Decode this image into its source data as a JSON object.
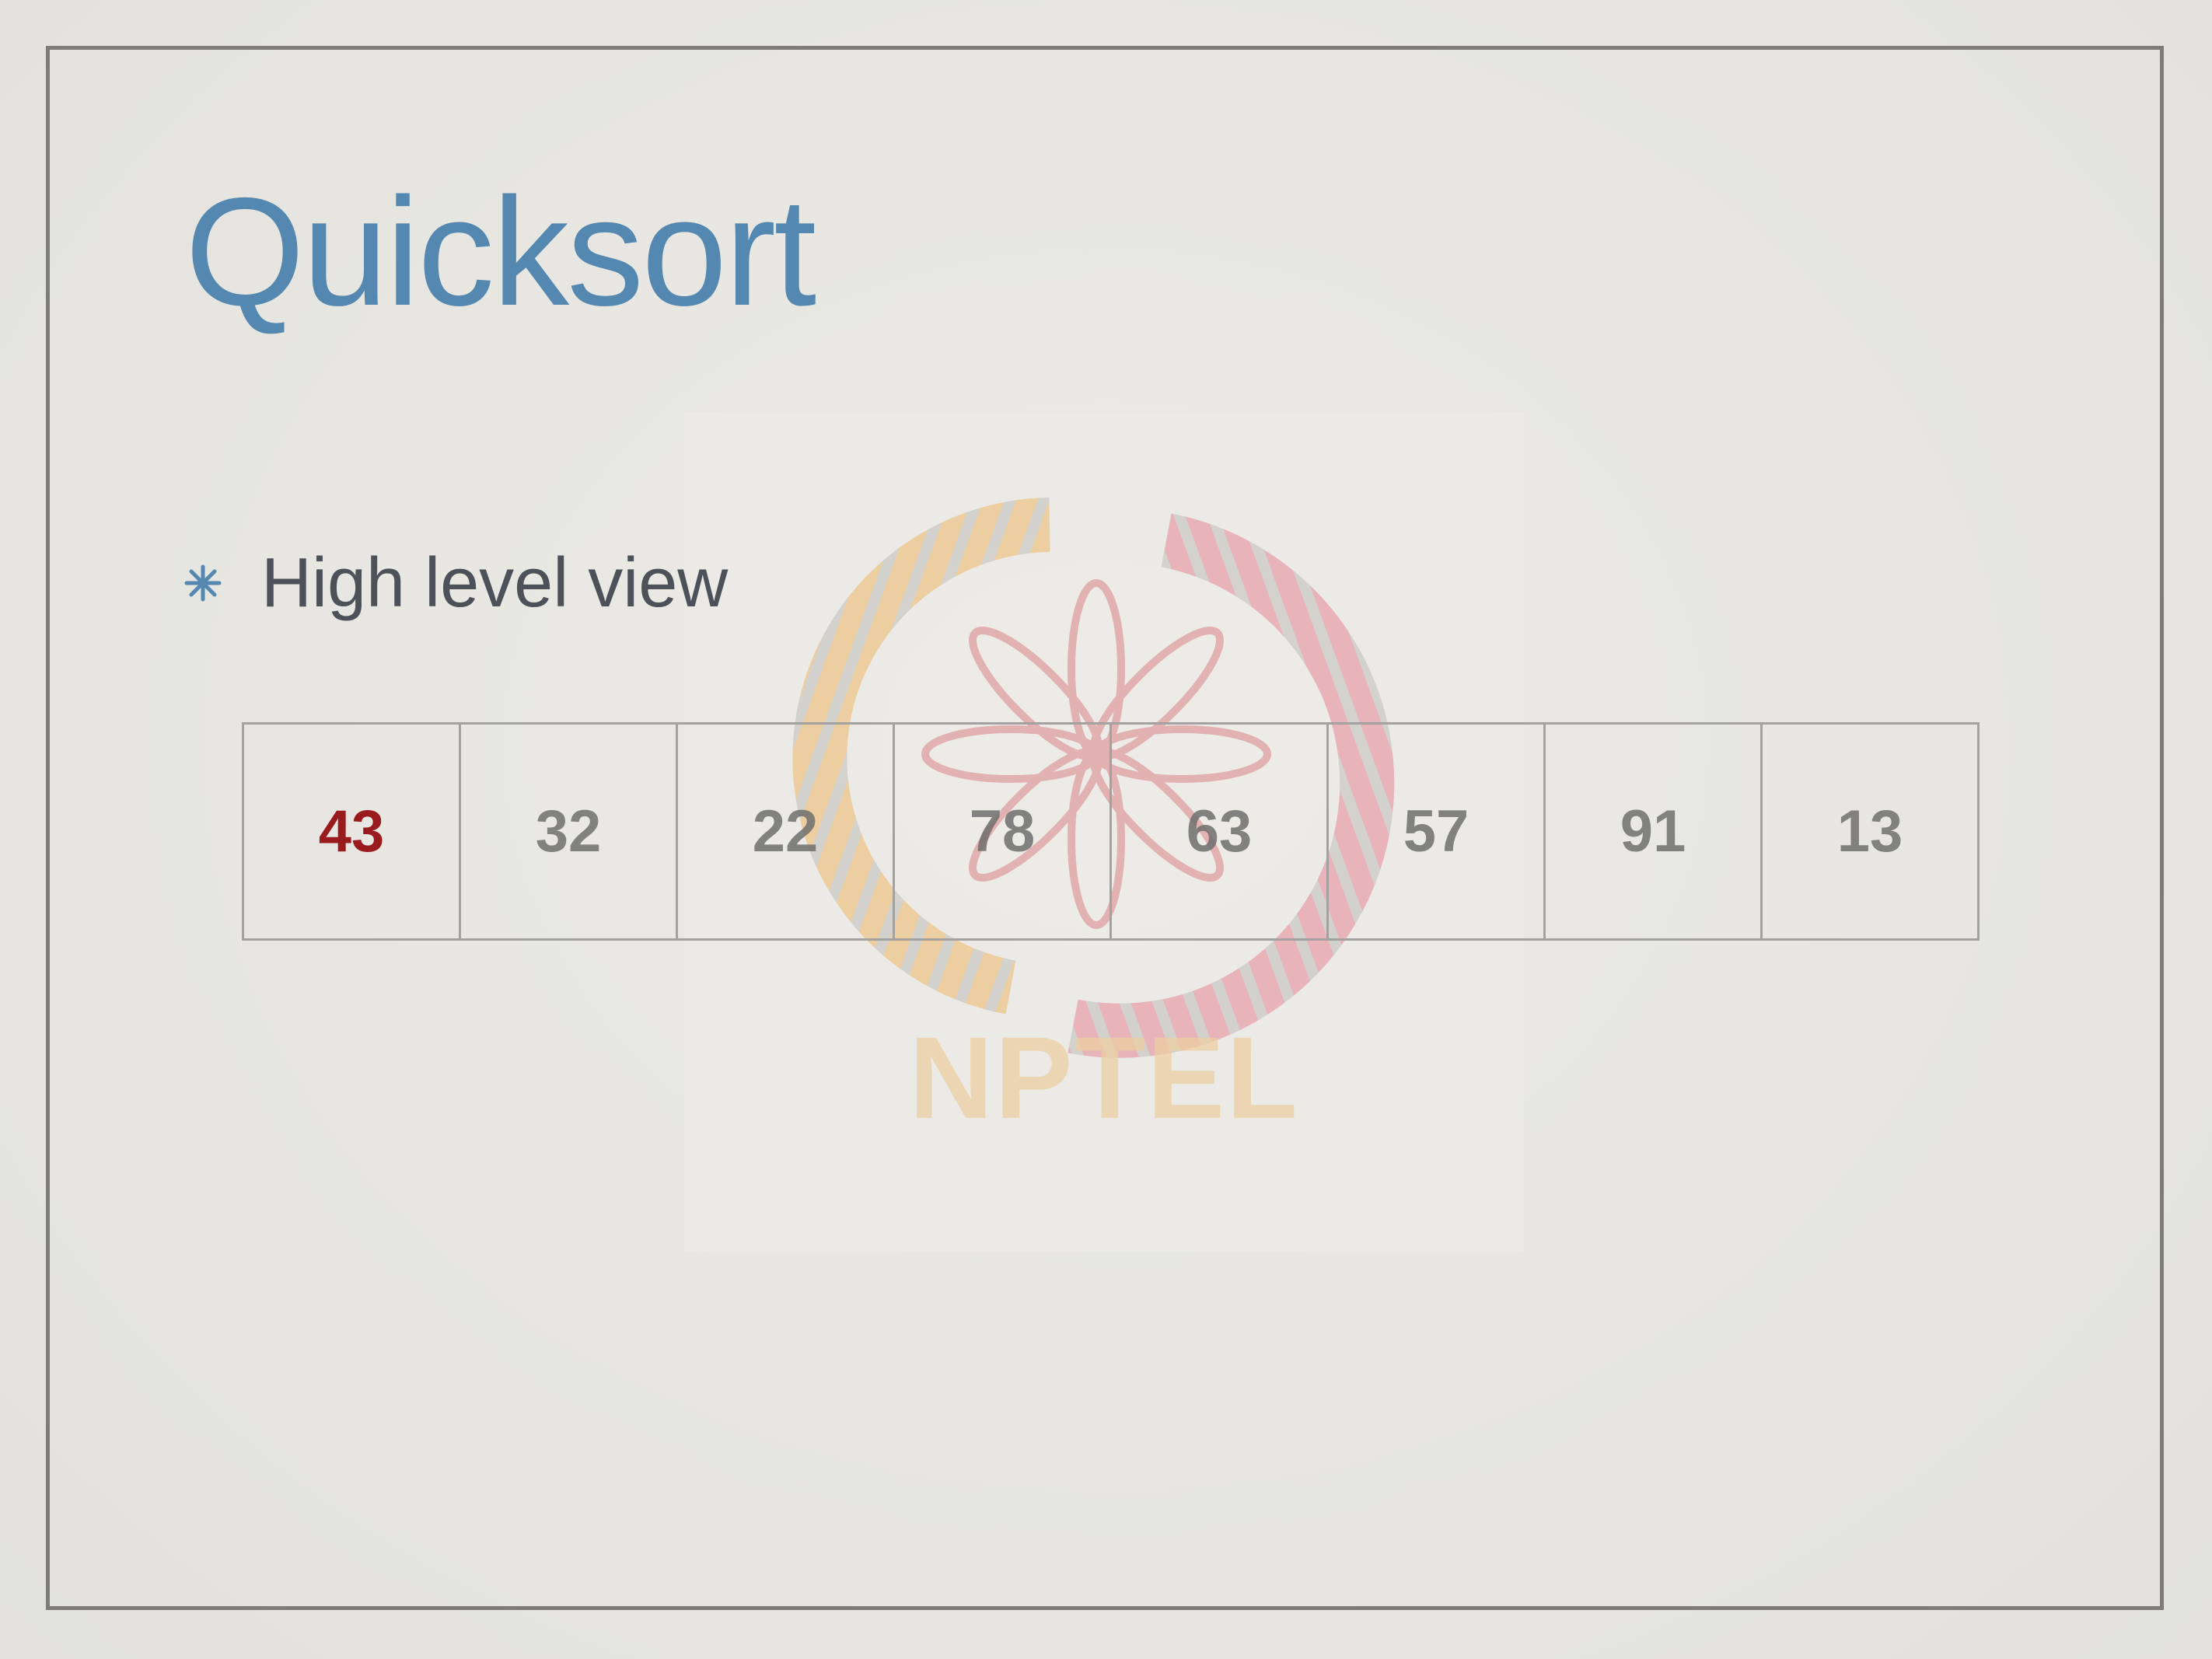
{
  "slide": {
    "title": "Quicksort",
    "bullets": [
      {
        "text": "High level view",
        "icon": "asterisk-bullet-icon"
      }
    ],
    "array": {
      "values": [
        "43",
        "32",
        "22",
        "78",
        "63",
        "57",
        "91",
        "13"
      ],
      "pivot_index": 0
    },
    "watermark": {
      "text": "NPTEL"
    },
    "colors": {
      "title": "#5588b0",
      "bullet_icon": "#5588b0",
      "bullet_text": "#4d525a",
      "pivot": "#9a1b1e",
      "cell_text": "#6e6e6c",
      "cell_border": "#a3a2a0",
      "frame": "#7d7c79"
    }
  }
}
